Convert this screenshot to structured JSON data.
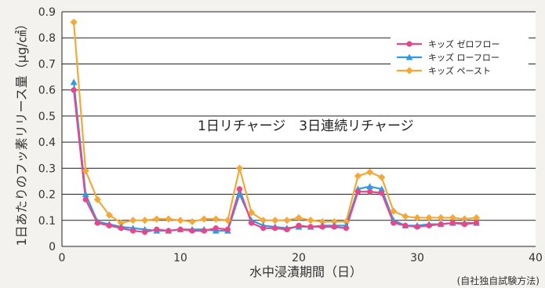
{
  "chart_data": {
    "type": "line",
    "ylabel": "1日あたりのフッ素リリース量（μg/㎠）",
    "xlabel": "水中浸漬期間（日）",
    "note": "(自社独自試験方法)",
    "annotation": "1日リチャージ　3日連続リチャージ",
    "xlim": [
      0,
      40
    ],
    "ylim": [
      0,
      0.9
    ],
    "xticks": [
      0,
      10,
      20,
      30,
      40
    ],
    "yticks": [
      0,
      0.1,
      0.2,
      0.3,
      0.4,
      0.5,
      0.6,
      0.7,
      0.8,
      0.9
    ],
    "xtick_labels": [
      "0",
      "10",
      "20",
      "30",
      "40"
    ],
    "ytick_labels": [
      "0",
      "0.1",
      "0.2",
      "0.3",
      "0.4",
      "0.5",
      "0.6",
      "0.7",
      "0.8",
      "0.9"
    ],
    "grid": true,
    "legend_position": "top-right",
    "series": [
      {
        "name": "キッズ ゼロフロー",
        "color": "#e8458b",
        "marker": "circle",
        "x": [
          1,
          2,
          3,
          4,
          5,
          6,
          7,
          8,
          9,
          10,
          11,
          12,
          13,
          14,
          15,
          16,
          17,
          18,
          19,
          20,
          21,
          22,
          23,
          24,
          25,
          26,
          27,
          28,
          29,
          30,
          31,
          32,
          33,
          34,
          35
        ],
        "y": [
          0.6,
          0.18,
          0.09,
          0.08,
          0.07,
          0.06,
          0.055,
          0.065,
          0.06,
          0.065,
          0.06,
          0.06,
          0.07,
          0.065,
          0.22,
          0.09,
          0.07,
          0.07,
          0.065,
          0.08,
          0.075,
          0.075,
          0.075,
          0.07,
          0.21,
          0.21,
          0.205,
          0.09,
          0.08,
          0.075,
          0.08,
          0.085,
          0.09,
          0.085,
          0.09
        ]
      },
      {
        "name": "キッズ ローフロー",
        "color": "#2f9be3",
        "marker": "triangle",
        "x": [
          1,
          2,
          3,
          4,
          5,
          6,
          7,
          8,
          9,
          10,
          11,
          12,
          13,
          14,
          15,
          16,
          17,
          18,
          19,
          20,
          21,
          22,
          23,
          24,
          25,
          26,
          27,
          28,
          29,
          30,
          31,
          32,
          33,
          34,
          35
        ],
        "y": [
          0.63,
          0.2,
          0.095,
          0.085,
          0.075,
          0.07,
          0.065,
          0.06,
          0.06,
          0.065,
          0.065,
          0.065,
          0.06,
          0.06,
          0.2,
          0.1,
          0.08,
          0.075,
          0.07,
          0.075,
          0.075,
          0.08,
          0.08,
          0.08,
          0.22,
          0.23,
          0.22,
          0.1,
          0.08,
          0.08,
          0.085,
          0.085,
          0.09,
          0.09,
          0.09
        ]
      },
      {
        "name": "キッズ ペースト",
        "color": "#f3a83a",
        "marker": "diamond",
        "x": [
          1,
          2,
          3,
          4,
          5,
          6,
          7,
          8,
          9,
          10,
          11,
          12,
          13,
          14,
          15,
          16,
          17,
          18,
          19,
          20,
          21,
          22,
          23,
          24,
          25,
          26,
          27,
          28,
          29,
          30,
          31,
          32,
          33,
          34,
          35
        ],
        "y": [
          0.86,
          0.29,
          0.18,
          0.12,
          0.09,
          0.1,
          0.1,
          0.105,
          0.105,
          0.1,
          0.095,
          0.105,
          0.105,
          0.1,
          0.3,
          0.13,
          0.1,
          0.1,
          0.1,
          0.11,
          0.1,
          0.095,
          0.095,
          0.095,
          0.27,
          0.285,
          0.265,
          0.135,
          0.115,
          0.11,
          0.11,
          0.11,
          0.11,
          0.105,
          0.11
        ]
      }
    ]
  }
}
